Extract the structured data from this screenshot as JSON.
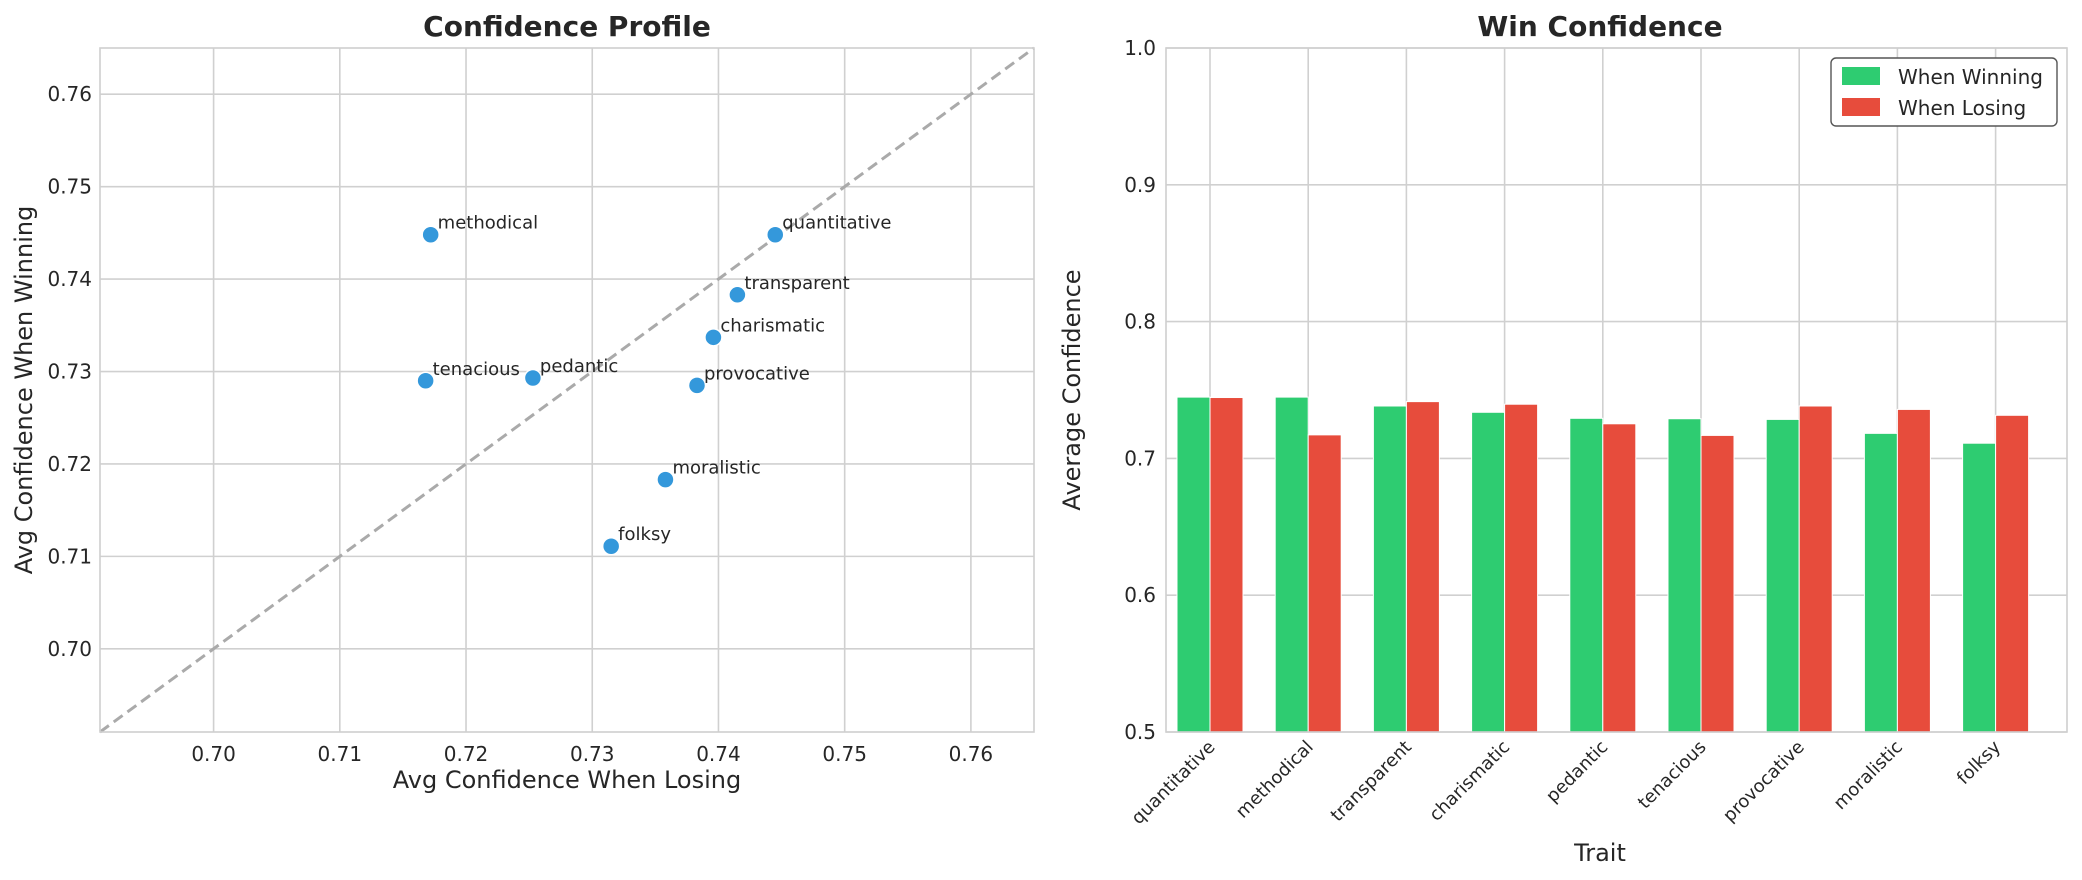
{
  "chart_data": [
    {
      "type": "scatter",
      "title": "Confidence Profile",
      "xlabel": "Avg Confidence When Losing",
      "ylabel": "Avg Confidence When Winning",
      "xlim": [
        0.691,
        0.765
      ],
      "ylim": [
        0.691,
        0.765
      ],
      "xticks": [
        0.7,
        0.71,
        0.72,
        0.73,
        0.74,
        0.75,
        0.76
      ],
      "yticks": [
        0.7,
        0.71,
        0.72,
        0.73,
        0.74,
        0.75,
        0.76
      ],
      "tick_labels": [
        "0.70",
        "0.71",
        "0.72",
        "0.73",
        "0.74",
        "0.75",
        "0.76"
      ],
      "diagonal": true,
      "grid": true,
      "point_color": "#3498db",
      "diagonal_color": "#aaaaaa",
      "points": [
        {
          "label": "methodical",
          "x": 0.7172,
          "y": 0.7448
        },
        {
          "label": "quantitative",
          "x": 0.7445,
          "y": 0.7448
        },
        {
          "label": "transparent",
          "x": 0.7415,
          "y": 0.7383
        },
        {
          "label": "charismatic",
          "x": 0.7396,
          "y": 0.7337
        },
        {
          "label": "tenacious",
          "x": 0.7168,
          "y": 0.729
        },
        {
          "label": "pedantic",
          "x": 0.7253,
          "y": 0.7293
        },
        {
          "label": "provocative",
          "x": 0.7383,
          "y": 0.7285
        },
        {
          "label": "moralistic",
          "x": 0.7358,
          "y": 0.7183
        },
        {
          "label": "folksy",
          "x": 0.7315,
          "y": 0.7111
        }
      ]
    },
    {
      "type": "bar",
      "title": "Win Confidence",
      "xlabel": "Trait",
      "ylabel": "Average Confidence",
      "ylim": [
        0.5,
        1.0
      ],
      "yticks": [
        0.5,
        0.6,
        0.7,
        0.8,
        0.9,
        1.0
      ],
      "ytick_labels": [
        "0.5",
        "0.6",
        "0.7",
        "0.8",
        "0.9",
        "1.0"
      ],
      "grid": true,
      "legend_position": "top-right",
      "categories": [
        "quantitative",
        "methodical",
        "transparent",
        "charismatic",
        "pedantic",
        "tenacious",
        "provocative",
        "moralistic",
        "folksy"
      ],
      "series": [
        {
          "name": "When Winning",
          "color": "#2ecc71",
          "values": [
            0.7448,
            0.7448,
            0.7383,
            0.7337,
            0.7293,
            0.729,
            0.7285,
            0.7183,
            0.7111
          ]
        },
        {
          "name": "When Losing",
          "color": "#e74c3c",
          "values": [
            0.7445,
            0.7172,
            0.7415,
            0.7396,
            0.7253,
            0.7168,
            0.7383,
            0.7358,
            0.7315
          ]
        }
      ]
    }
  ]
}
